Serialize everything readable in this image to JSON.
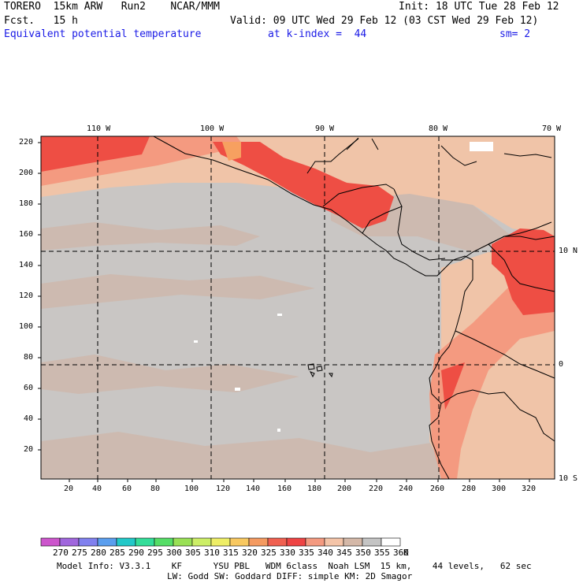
{
  "header": {
    "left_line1": "TORERO  15km ARW   Run2    NCAR/MMM",
    "left_line2": "Fcst.   15 h",
    "init": "Init: 18 UTC Tue 28 Feb 12",
    "valid": "Valid: 09 UTC Wed 29 Feb 12 (03 CST Wed 29 Feb 12)",
    "field": "Equivalent potential temperature",
    "level": "at k-index =  44",
    "smooth": "sm= 2"
  },
  "map": {
    "lon_labels": [
      "110 W",
      "100 W",
      "90 W",
      "80 W",
      "70 W"
    ],
    "lat_labels": [
      "10 N",
      "0",
      "10 S"
    ],
    "x_ticks": [
      "20",
      "40",
      "60",
      "80",
      "100",
      "120",
      "140",
      "160",
      "180",
      "200",
      "220",
      "240",
      "260",
      "280",
      "300",
      "320"
    ],
    "y_ticks": [
      "220",
      "200",
      "180",
      "160",
      "140",
      "120",
      "100",
      "80",
      "60",
      "40",
      "20"
    ]
  },
  "colorbar": {
    "levels": [
      "270",
      "275",
      "280",
      "285",
      "290",
      "295",
      "300",
      "305",
      "310",
      "315",
      "320",
      "325",
      "330",
      "335",
      "340",
      "345",
      "350",
      "355",
      "360"
    ],
    "unit": "K",
    "colors": [
      "#cc55cc",
      "#a066dd",
      "#8080ee",
      "#5a9eee",
      "#22c8c8",
      "#33dd99",
      "#55dd66",
      "#99e055",
      "#ccee66",
      "#eeee66",
      "#f8c860",
      "#f49a60",
      "#f06050",
      "#ee4444",
      "#f49a80",
      "#f4c4a8",
      "#d4b8a8",
      "#c4c4c4",
      "#ffffff"
    ]
  },
  "footer": {
    "line1": "Model Info: V3.3.1    KF      YSU PBL   WDM 6class  Noah LSM  15 km,    44 levels,   62 sec",
    "line2": "LW: Godd SW: Goddard DIFF: simple KM: 2D Smagor"
  }
}
